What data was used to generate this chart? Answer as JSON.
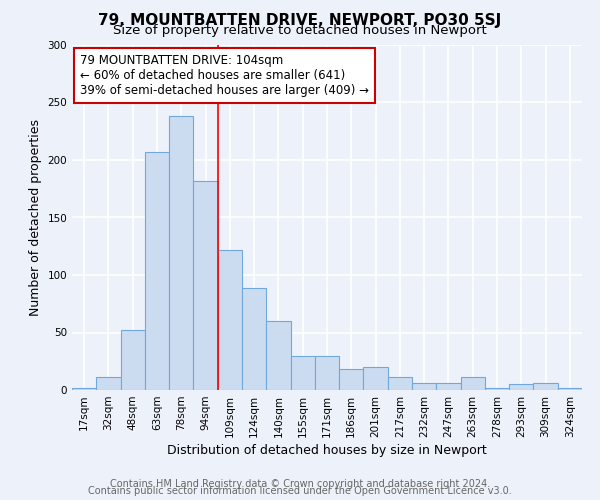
{
  "title": "79, MOUNTBATTEN DRIVE, NEWPORT, PO30 5SJ",
  "subtitle": "Size of property relative to detached houses in Newport",
  "xlabel": "Distribution of detached houses by size in Newport",
  "ylabel": "Number of detached properties",
  "bar_labels": [
    "17sqm",
    "32sqm",
    "48sqm",
    "63sqm",
    "78sqm",
    "94sqm",
    "109sqm",
    "124sqm",
    "140sqm",
    "155sqm",
    "171sqm",
    "186sqm",
    "201sqm",
    "217sqm",
    "232sqm",
    "247sqm",
    "263sqm",
    "278sqm",
    "293sqm",
    "309sqm",
    "324sqm"
  ],
  "bar_values": [
    2,
    11,
    52,
    207,
    238,
    182,
    122,
    89,
    60,
    30,
    30,
    18,
    20,
    11,
    6,
    6,
    11,
    2,
    5,
    6,
    2
  ],
  "bar_color": "#ccdcf0",
  "bar_edge_color": "#6fa8dc",
  "ylim": [
    0,
    300
  ],
  "yticks": [
    0,
    50,
    100,
    150,
    200,
    250,
    300
  ],
  "red_line_x": 5.5,
  "annotation_line1": "79 MOUNTBATTEN DRIVE: 104sqm",
  "annotation_line2": "← 60% of detached houses are smaller (641)",
  "annotation_line3": "39% of semi-detached houses are larger (409) →",
  "annotation_box_color": "#ffffff",
  "annotation_box_edge": "#cc0000",
  "footer_line1": "Contains HM Land Registry data © Crown copyright and database right 2024.",
  "footer_line2": "Contains public sector information licensed under the Open Government Licence v3.0.",
  "bg_color": "#edf2fa",
  "grid_color": "#ffffff",
  "title_fontsize": 11,
  "subtitle_fontsize": 9.5,
  "axis_label_fontsize": 9,
  "tick_fontsize": 7.5,
  "annotation_fontsize": 8.5,
  "footer_fontsize": 7
}
